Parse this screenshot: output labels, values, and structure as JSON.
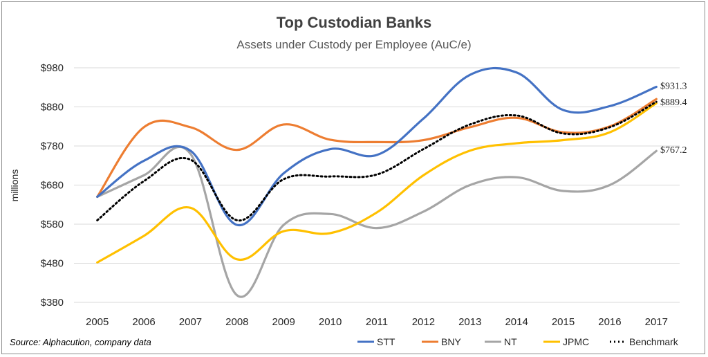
{
  "chart_data": {
    "type": "line",
    "title": "Top Custodian Banks",
    "subtitle": "Assets under Custody per Employee (AuC/e)",
    "ylabel": "millions",
    "xlabel": "",
    "source": "Source: Alphacution, company data",
    "x": [
      "2005",
      "2006",
      "2007",
      "2008",
      "2009",
      "2010",
      "2011",
      "2012",
      "2013",
      "2014",
      "2015",
      "2016",
      "2017"
    ],
    "ylim": [
      380,
      980
    ],
    "yticks": [
      980,
      880,
      780,
      680,
      580,
      480,
      380
    ],
    "ytick_labels": [
      "$980",
      "$880",
      "$780",
      "$680",
      "$580",
      "$480",
      "$380"
    ],
    "grid": true,
    "legend_position": "bottom-right",
    "series": [
      {
        "name": "STT",
        "color": "#4472C4",
        "dash": "",
        "values": [
          650,
          742,
          768,
          578,
          710,
          772,
          757,
          850,
          962,
          968,
          872,
          882,
          931.3
        ]
      },
      {
        "name": "BNY",
        "color": "#ED7D31",
        "dash": "",
        "values": [
          650,
          828,
          828,
          770,
          835,
          796,
          790,
          795,
          828,
          852,
          815,
          830,
          900
        ]
      },
      {
        "name": "NT",
        "color": "#A5A5A5",
        "dash": "",
        "values": [
          650,
          705,
          760,
          398,
          578,
          606,
          570,
          612,
          680,
          700,
          665,
          680,
          767.2
        ]
      },
      {
        "name": "JPMC",
        "color": "#FFC000",
        "dash": "",
        "values": [
          482,
          550,
          622,
          490,
          562,
          557,
          610,
          705,
          768,
          787,
          795,
          815,
          889.4
        ]
      },
      {
        "name": "Benchmark",
        "color": "#000000",
        "dash": "2,4",
        "values": [
          590,
          690,
          745,
          590,
          695,
          702,
          707,
          772,
          835,
          858,
          812,
          828,
          893
        ]
      }
    ],
    "data_labels": [
      {
        "text": "$931.3",
        "value": 931.3
      },
      {
        "text": "$889.4",
        "value": 889.4
      },
      {
        "text": "$767.2",
        "value": 767.2
      }
    ]
  }
}
